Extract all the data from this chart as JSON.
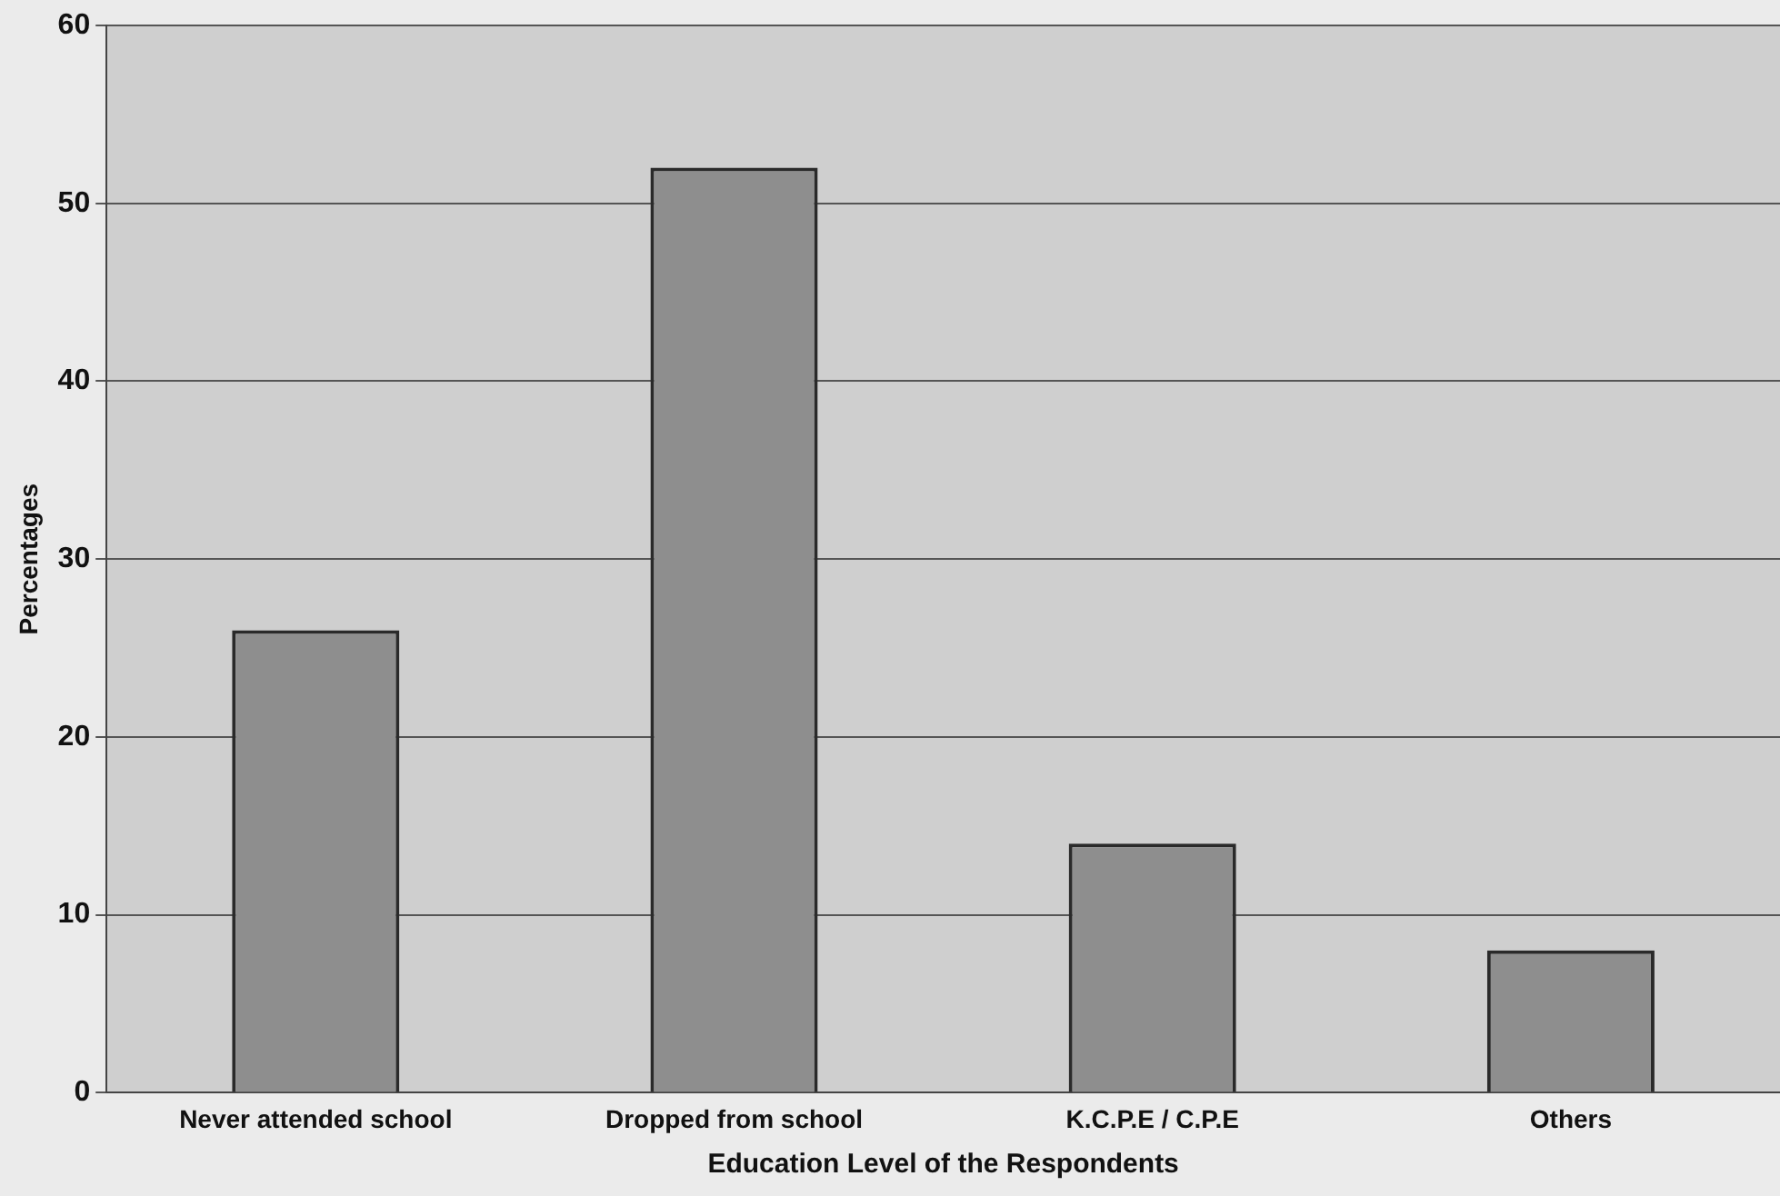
{
  "chart_data": {
    "type": "bar",
    "xlabel": "Education Level of the Respondents",
    "ylabel": "Percentages",
    "categories": [
      "Never attended school",
      "Dropped from school",
      "K.C.P.E / C.P.E",
      "Others"
    ],
    "values": [
      26,
      52,
      14,
      8
    ],
    "color": "#8e8e8e",
    "ylim": [
      0,
      60
    ],
    "yticks": [
      0,
      10,
      20,
      30,
      40,
      50,
      60
    ],
    "grid": "y",
    "legend": false
  }
}
